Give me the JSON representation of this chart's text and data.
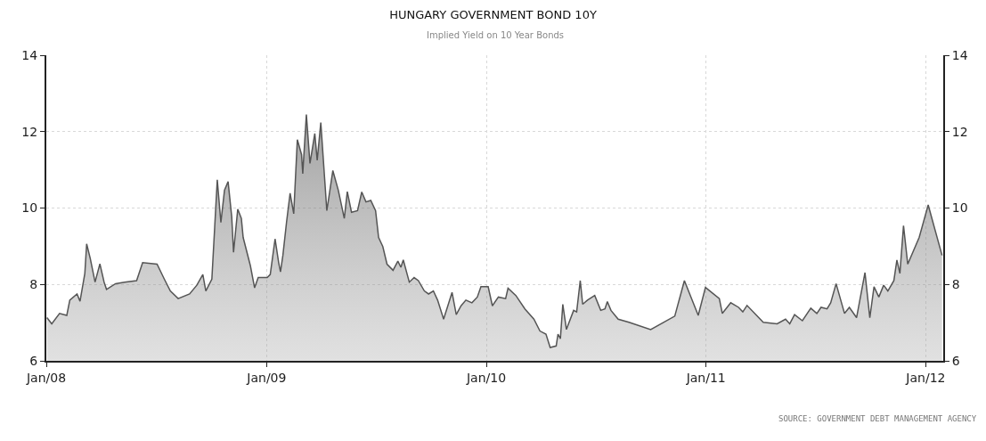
{
  "chart_data": {
    "type": "area",
    "title": "HUNGARY GOVERNMENT BOND 10Y",
    "subtitle": "Implied Yield on 10 Year Bonds",
    "annotations": [
      "SOURCE: GOVERNMENT DEBT MANAGEMENT AGENCY"
    ],
    "x": [
      "2008-01-02",
      "2008-01-10",
      "2008-01-23",
      "2008-02-04",
      "2008-02-09",
      "2008-02-21",
      "2008-02-26",
      "2008-03-05",
      "2008-03-08",
      "2008-03-14",
      "2008-03-22",
      "2008-03-30",
      "2008-04-06",
      "2008-04-10",
      "2008-04-25",
      "2008-05-10",
      "2008-05-30",
      "2008-06-09",
      "2008-07-03",
      "2008-07-15",
      "2008-07-25",
      "2008-08-07",
      "2008-08-26",
      "2008-09-07",
      "2008-09-17",
      "2008-09-22",
      "2008-10-02",
      "2008-10-11",
      "2008-10-17",
      "2008-10-23",
      "2008-10-29",
      "2008-11-04",
      "2008-11-07",
      "2008-11-14",
      "2008-11-20",
      "2008-11-23",
      "2008-12-05",
      "2008-12-12",
      "2008-12-18",
      "2009-01-02",
      "2009-01-07",
      "2009-01-15",
      "2009-01-21",
      "2009-01-24",
      "2009-01-28",
      "2009-02-03",
      "2009-02-09",
      "2009-02-15",
      "2009-02-21",
      "2009-02-28",
      "2009-03-02",
      "2009-03-08",
      "2009-03-14",
      "2009-03-22",
      "2009-03-26",
      "2009-04-01",
      "2009-04-11",
      "2009-04-21",
      "2009-04-30",
      "2009-05-10",
      "2009-05-15",
      "2009-05-22",
      "2009-06-01",
      "2009-06-08",
      "2009-06-15",
      "2009-06-23",
      "2009-07-01",
      "2009-07-06",
      "2009-07-13",
      "2009-07-20",
      "2009-07-30",
      "2009-08-07",
      "2009-08-12",
      "2009-08-16",
      "2009-08-26",
      "2009-09-03",
      "2009-09-10",
      "2009-09-20",
      "2009-09-27",
      "2009-10-05",
      "2009-10-12",
      "2009-10-22",
      "2009-10-29",
      "2009-11-05",
      "2009-11-12",
      "2009-11-20",
      "2009-11-28",
      "2009-12-08",
      "2009-12-17",
      "2009-12-23",
      "2010-01-04",
      "2010-01-11",
      "2010-01-21",
      "2010-02-02",
      "2010-02-06",
      "2010-02-19",
      "2010-03-06",
      "2010-03-21",
      "2010-03-31",
      "2010-04-10",
      "2010-04-17",
      "2010-04-27",
      "2010-04-30",
      "2010-05-04",
      "2010-05-08",
      "2010-05-14",
      "2010-05-26",
      "2010-05-31",
      "2010-06-06",
      "2010-06-10",
      "2010-06-18",
      "2010-06-30",
      "2010-07-10",
      "2010-07-17",
      "2010-07-21",
      "2010-07-27",
      "2010-08-08",
      "2010-08-26",
      "2010-10-01",
      "2010-11-10",
      "2010-11-26",
      "2010-12-19",
      "2010-12-31",
      "2011-01-23",
      "2011-01-28",
      "2011-02-11",
      "2011-02-24",
      "2011-03-03",
      "2011-03-10",
      "2011-03-27",
      "2011-04-06",
      "2011-04-29",
      "2011-05-13",
      "2011-05-20",
      "2011-05-28",
      "2011-06-10",
      "2011-06-24",
      "2011-07-04",
      "2011-07-11",
      "2011-07-21",
      "2011-07-27",
      "2011-08-05",
      "2011-08-19",
      "2011-08-27",
      "2011-09-08",
      "2011-09-22",
      "2011-09-30",
      "2011-10-07",
      "2011-10-15",
      "2011-10-23",
      "2011-10-30",
      "2011-11-09",
      "2011-11-14",
      "2011-11-19",
      "2011-11-25",
      "2011-12-02",
      "2011-12-21",
      "2012-01-05",
      "2012-01-28"
    ],
    "series": [
      {
        "color": "#555555",
        "values": [
          7.13,
          6.97,
          7.24,
          7.19,
          7.59,
          7.75,
          7.56,
          8.29,
          9.06,
          8.68,
          8.06,
          8.54,
          8.06,
          7.87,
          8.02,
          8.06,
          8.1,
          8.57,
          8.53,
          8.14,
          7.83,
          7.63,
          7.75,
          7.98,
          8.26,
          7.83,
          8.14,
          10.74,
          9.62,
          10.47,
          10.69,
          9.77,
          8.84,
          9.97,
          9.73,
          9.23,
          8.49,
          7.91,
          8.18,
          8.18,
          8.26,
          9.19,
          8.57,
          8.33,
          8.76,
          9.62,
          10.39,
          9.85,
          11.79,
          11.4,
          10.9,
          12.45,
          11.17,
          11.95,
          11.25,
          12.24,
          9.93,
          10.98,
          10.47,
          9.73,
          10.43,
          9.89,
          9.93,
          10.42,
          10.16,
          10.2,
          9.93,
          9.23,
          8.99,
          8.53,
          8.37,
          8.61,
          8.45,
          8.64,
          8.06,
          8.18,
          8.1,
          7.83,
          7.75,
          7.83,
          7.59,
          7.09,
          7.44,
          7.79,
          7.21,
          7.44,
          7.59,
          7.52,
          7.67,
          7.94,
          7.94,
          7.44,
          7.67,
          7.63,
          7.9,
          7.71,
          7.36,
          7.09,
          6.78,
          6.7,
          6.35,
          6.39,
          6.7,
          6.58,
          7.48,
          6.82,
          7.32,
          7.28,
          8.1,
          7.48,
          7.59,
          7.71,
          7.32,
          7.36,
          7.55,
          7.32,
          7.09,
          7.01,
          6.82,
          7.17,
          8.1,
          7.19,
          7.92,
          7.63,
          7.24,
          7.52,
          7.4,
          7.28,
          7.45,
          7.17,
          7.01,
          6.97,
          7.09,
          6.97,
          7.21,
          7.05,
          7.38,
          7.24,
          7.4,
          7.36,
          7.52,
          8.02,
          7.24,
          7.4,
          7.13,
          8.31,
          7.13,
          7.94,
          7.67,
          7.98,
          7.83,
          8.1,
          8.64,
          8.29,
          9.54,
          8.53,
          9.23,
          10.08,
          8.76
        ]
      }
    ],
    "xlim": [
      "2008-01-01",
      "2012-01-30"
    ],
    "xticks": [
      {
        "value": "2008-01-01",
        "label": "Jan/08"
      },
      {
        "value": "2009-01-01",
        "label": "Jan/09"
      },
      {
        "value": "2010-01-01",
        "label": "Jan/10"
      },
      {
        "value": "2011-01-01",
        "label": "Jan/11"
      },
      {
        "value": "2012-01-01",
        "label": "Jan/12"
      }
    ],
    "ylim": [
      6,
      14
    ],
    "yticks": [
      6,
      8,
      10,
      12,
      14
    ],
    "y2lim": [
      6,
      14
    ],
    "y2ticks": [
      6,
      8,
      10,
      12,
      14
    ],
    "grid": true
  }
}
